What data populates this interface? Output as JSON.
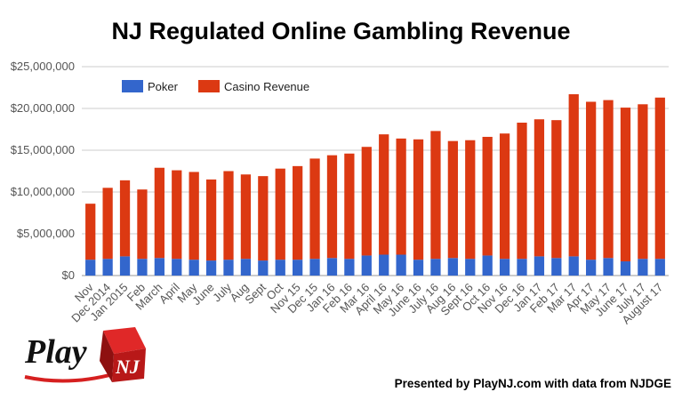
{
  "chart_data": {
    "type": "bar",
    "stacked": true,
    "title": "NJ Regulated Online Gambling Revenue",
    "xlabel": "",
    "ylabel": "",
    "ylim": [
      0,
      25000000
    ],
    "yticks": [
      "$0",
      "$5,000,000",
      "$10,000,000",
      "$15,000,000",
      "$20,000,000",
      "$25,000,000"
    ],
    "grid": true,
    "legend": "top-left",
    "categories": [
      "Nov",
      "Dec 2014",
      "Jan 2015",
      "Feb",
      "March",
      "April",
      "May",
      "June",
      "July",
      "Aug",
      "Sept",
      "Oct",
      "Nov 15",
      "Dec 15",
      "Jan 16",
      "Feb 16",
      "Mar 16",
      "April 16",
      "May 16",
      "June 16",
      "July 16",
      "Aug 16",
      "Sept 16",
      "Oct 16",
      "Nov 16",
      "Dec 16",
      "Jan 17",
      "Feb 17",
      "Mar 17",
      "Apr 17",
      "May 17",
      "June 17",
      "July 17",
      "August 17"
    ],
    "series": [
      {
        "name": "Poker",
        "color": "#3366cc",
        "values": [
          1900000,
          2000000,
          2300000,
          2000000,
          2100000,
          2000000,
          1900000,
          1800000,
          1900000,
          2000000,
          1800000,
          1900000,
          1900000,
          2000000,
          2100000,
          2000000,
          2400000,
          2500000,
          2500000,
          1900000,
          2000000,
          2100000,
          2000000,
          2400000,
          2000000,
          2000000,
          2300000,
          2100000,
          2300000,
          1900000,
          2100000,
          1700000,
          2000000,
          2000000
        ]
      },
      {
        "name": "Casino Revenue",
        "color": "#dc3912",
        "values": [
          6700000,
          8500000,
          9100000,
          8300000,
          10800000,
          10600000,
          10500000,
          9700000,
          10600000,
          10100000,
          10100000,
          10900000,
          11200000,
          12000000,
          12300000,
          12600000,
          13000000,
          14400000,
          13900000,
          14400000,
          15300000,
          14000000,
          14200000,
          14200000,
          15000000,
          16300000,
          16400000,
          16500000,
          19400000,
          18900000,
          18900000,
          18400000,
          18500000,
          19300000
        ]
      }
    ]
  },
  "logo": {
    "text_play": "Play",
    "text_nj": "NJ"
  },
  "credit": "Presented by PlayNJ.com with data from NJDGE"
}
